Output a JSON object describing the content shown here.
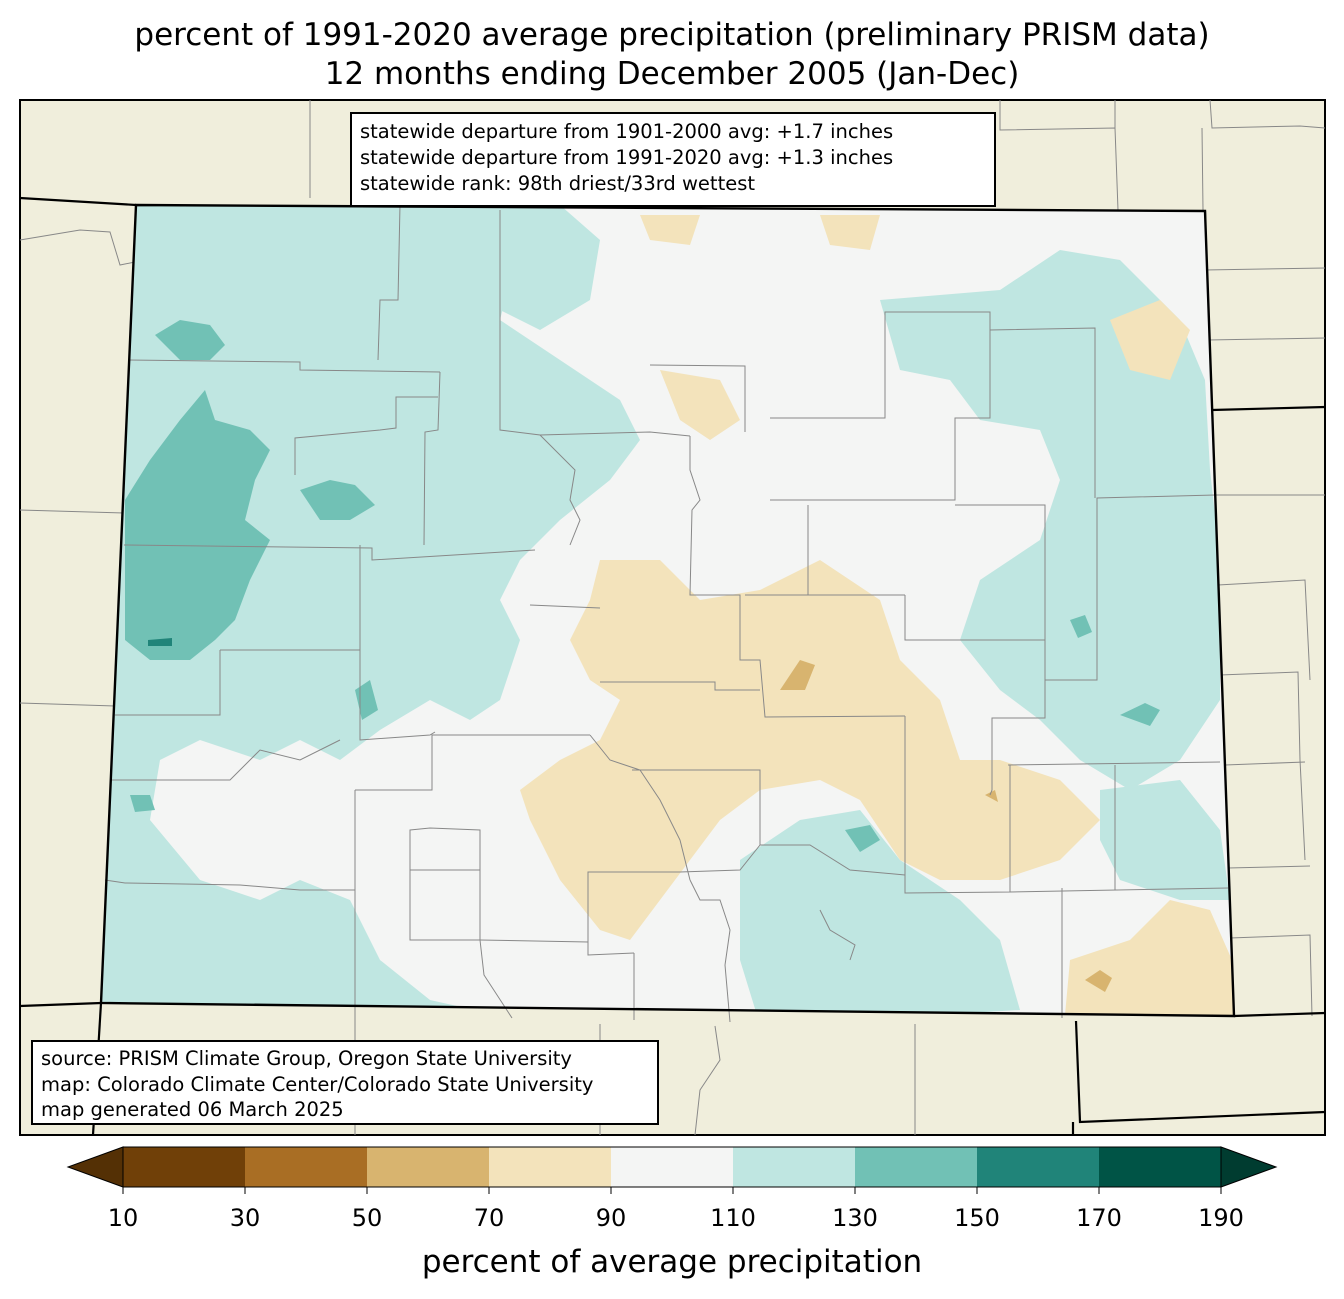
{
  "title": {
    "line1": "percent of 1991-2020 average precipitation (preliminary PRISM data)",
    "line2": "12 months ending December 2005 (Jan-Dec)"
  },
  "stats": {
    "line1": "statewide departure from 1901-2000 avg: +1.7 inches",
    "line2": "statewide departure from 1991-2020 avg: +1.3 inches",
    "line3": "statewide rank: 98th driest/33rd wettest"
  },
  "source": {
    "line1": "source: PRISM Climate Group, Oregon State University",
    "line2": "map: Colorado Climate Center/Colorado State University",
    "line3": "map generated 06 March 2025"
  },
  "colorbar": {
    "label": "percent of average precipitation",
    "ticks": [
      "10",
      "30",
      "50",
      "70",
      "90",
      "110",
      "130",
      "150",
      "170",
      "190"
    ],
    "under_color": "#543005",
    "over_color": "#003c30",
    "bins": [
      {
        "range": "10-30",
        "color": "#704008"
      },
      {
        "range": "30-50",
        "color": "#a96e24"
      },
      {
        "range": "50-70",
        "color": "#d8b46f"
      },
      {
        "range": "70-90",
        "color": "#f3e3bb"
      },
      {
        "range": "90-110",
        "color": "#f4f5f4"
      },
      {
        "range": "110-130",
        "color": "#bfe6e1"
      },
      {
        "range": "130-150",
        "color": "#71c1b5"
      },
      {
        "range": "150-170",
        "color": "#208479"
      },
      {
        "range": "170-190",
        "color": "#005446"
      }
    ]
  },
  "colors": {
    "land_outside": "#f0eedc",
    "county_lines": "#888888",
    "state_lines": "#000000"
  }
}
